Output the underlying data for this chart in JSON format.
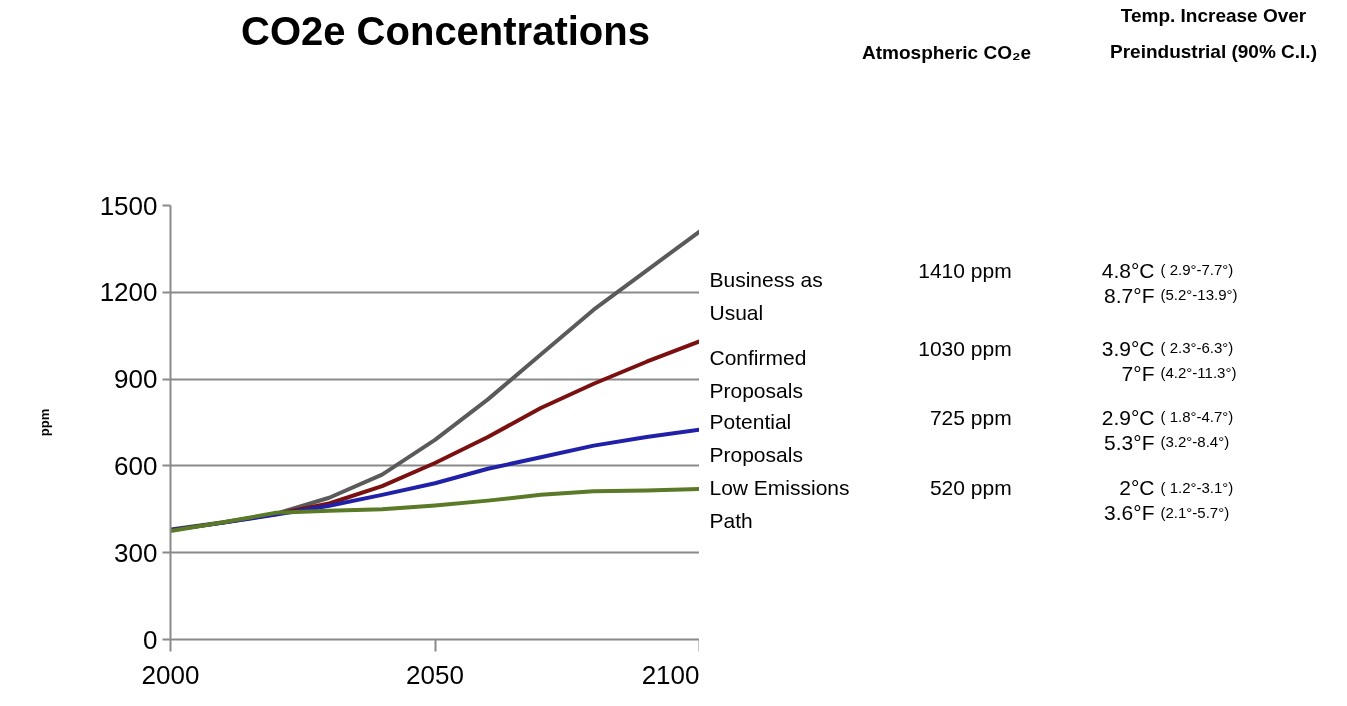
{
  "chart_data": {
    "type": "line",
    "title": "CO2e Concentrations",
    "ylabel": "ppm",
    "x": [
      2000,
      2010,
      2020,
      2030,
      2040,
      2050,
      2060,
      2070,
      2080,
      2090,
      2100
    ],
    "series": [
      {
        "name": "Business as Usual",
        "color": "#5a5a5a",
        "values": [
          380,
          405,
          435,
          490,
          570,
          690,
          830,
          985,
          1140,
          1275,
          1410
        ]
      },
      {
        "name": "Confirmed Proposals",
        "color": "#7b1010",
        "values": [
          378,
          404,
          434,
          470,
          530,
          610,
          700,
          800,
          884,
          960,
          1030
        ]
      },
      {
        "name": "Potential Proposals",
        "color": "#2020a8",
        "values": [
          378,
          404,
          432,
          462,
          500,
          540,
          590,
          630,
          670,
          700,
          725
        ]
      },
      {
        "name": "Low Emissions Path",
        "color": "#5a7a28",
        "values": [
          375,
          405,
          438,
          445,
          450,
          463,
          480,
          500,
          512,
          515,
          520
        ]
      }
    ],
    "xlim": [
      2000,
      2100
    ],
    "ylim": [
      0,
      1500
    ],
    "xticks": [
      2000,
      2050,
      2100
    ],
    "yticks": [
      0,
      300,
      600,
      900,
      1200,
      1500
    ],
    "grid": "y",
    "marker": "none",
    "line_style": "solid",
    "annotations": [
      "Atmospheric CO₂e",
      "Temp. Increase Over Preindustrial (90% C.I.)",
      "1410  ppm",
      "4.8°C",
      "( 2.9°-7.7°)",
      "8.7°F",
      "(5.2°-13.9°)",
      "1030  ppm",
      "3.9°C",
      "( 2.3°-6.3°)",
      "7°F",
      "(4.2°-11.3°)",
      "725  ppm",
      "2.9°C",
      "( 1.8°-4.7°)",
      "5.3°F",
      "(3.2°-8.4°)",
      "520  ppm",
      "2°C",
      "( 1.2°-3.1°)",
      "3.6°F",
      "(2.1°-5.7°)"
    ]
  }
}
